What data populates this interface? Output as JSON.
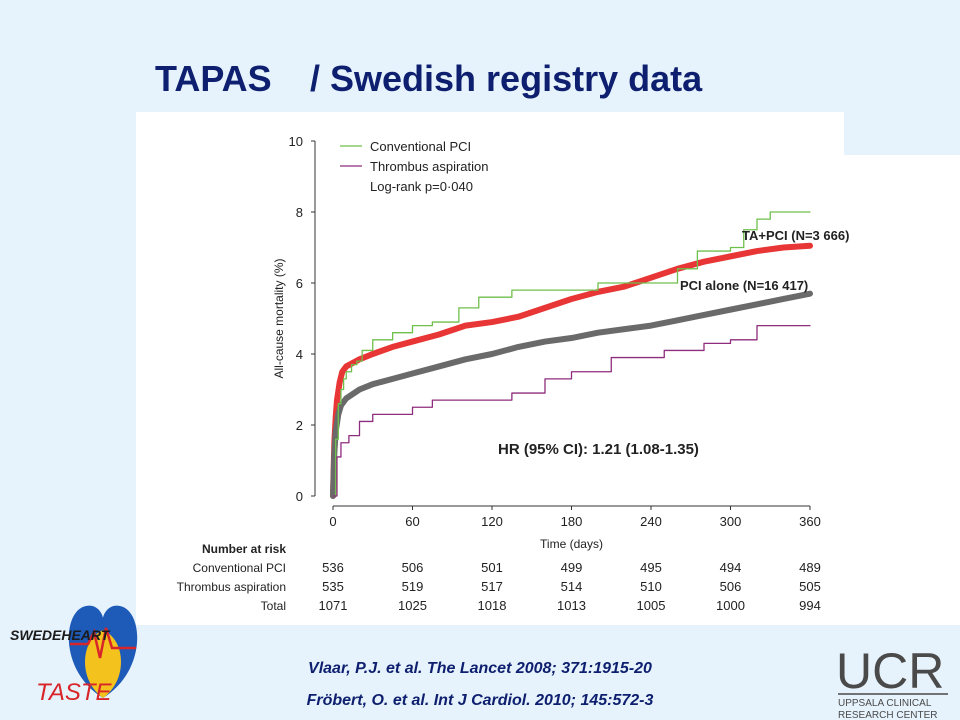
{
  "title_main": "TAPAS",
  "title_sub": "/ Swedish registry data",
  "citations": [
    "Vlaar, P.J. et al. The Lancet  2008; 371:1915-20",
    "Fröbert, O. et al. Int J Cardiol. 2010; 145:572-3"
  ],
  "logos": {
    "swedeheart": "SWEDEHEART",
    "taste": "TASTE",
    "ucr": "UCR",
    "ucr_sub1": "UPPSALA CLINICAL",
    "ucr_sub2": "RESEARCH CENTER"
  },
  "colors": {
    "title": "#0d1f6e",
    "conventional_pci": "#6fbf4b",
    "thrombus_aspiration": "#8e2c7d",
    "ta_pci_registry": "#e83535",
    "pci_alone_registry": "#6a6a6a"
  },
  "chart_data": {
    "type": "line",
    "xlabel": "Time (days)",
    "ylabel": "All-cause mortality (%)",
    "xlim": [
      0,
      360
    ],
    "ylim": [
      0,
      10
    ],
    "x_ticks": [
      0,
      60,
      120,
      180,
      240,
      300,
      360
    ],
    "y_ticks": [
      0,
      2,
      4,
      6,
      8,
      10
    ],
    "legend": {
      "placement": "top-left",
      "entries": [
        "Conventional PCI",
        "Thrombus aspiration",
        "Log-rank p=0·040"
      ]
    },
    "series": [
      {
        "name": "Conventional PCI",
        "step": true,
        "points": [
          [
            0,
            0
          ],
          [
            2,
            1.6
          ],
          [
            4,
            2.6
          ],
          [
            6,
            3.0
          ],
          [
            8,
            3.3
          ],
          [
            10,
            3.5
          ],
          [
            14,
            3.7
          ],
          [
            18,
            3.8
          ],
          [
            22,
            4.1
          ],
          [
            30,
            4.4
          ],
          [
            45,
            4.6
          ],
          [
            60,
            4.8
          ],
          [
            75,
            4.9
          ],
          [
            95,
            5.3
          ],
          [
            110,
            5.6
          ],
          [
            125,
            5.6
          ],
          [
            135,
            5.8
          ],
          [
            160,
            5.8
          ],
          [
            185,
            5.8
          ],
          [
            200,
            6.0
          ],
          [
            240,
            6.0
          ],
          [
            260,
            6.4
          ],
          [
            275,
            6.9
          ],
          [
            300,
            7.0
          ],
          [
            310,
            7.5
          ],
          [
            320,
            7.8
          ],
          [
            330,
            8.0
          ],
          [
            360,
            8.0
          ]
        ]
      },
      {
        "name": "Thrombus aspiration",
        "step": true,
        "points": [
          [
            0,
            0
          ],
          [
            3,
            1.1
          ],
          [
            6,
            1.5
          ],
          [
            12,
            1.7
          ],
          [
            20,
            2.1
          ],
          [
            30,
            2.3
          ],
          [
            60,
            2.5
          ],
          [
            75,
            2.7
          ],
          [
            120,
            2.7
          ],
          [
            135,
            2.9
          ],
          [
            160,
            3.3
          ],
          [
            180,
            3.5
          ],
          [
            200,
            3.5
          ],
          [
            210,
            3.9
          ],
          [
            240,
            3.9
          ],
          [
            250,
            4.1
          ],
          [
            270,
            4.1
          ],
          [
            280,
            4.3
          ],
          [
            300,
            4.4
          ],
          [
            320,
            4.8
          ],
          [
            360,
            4.8
          ]
        ]
      },
      {
        "name": "TA+PCI (N=3 666)",
        "step": false,
        "points": [
          [
            0,
            0
          ],
          [
            1,
            1.5
          ],
          [
            2,
            2.2
          ],
          [
            3,
            2.7
          ],
          [
            5,
            3.2
          ],
          [
            7,
            3.5
          ],
          [
            10,
            3.65
          ],
          [
            20,
            3.85
          ],
          [
            30,
            4.0
          ],
          [
            45,
            4.2
          ],
          [
            60,
            4.35
          ],
          [
            80,
            4.55
          ],
          [
            100,
            4.8
          ],
          [
            120,
            4.9
          ],
          [
            140,
            5.05
          ],
          [
            160,
            5.3
          ],
          [
            180,
            5.55
          ],
          [
            200,
            5.75
          ],
          [
            220,
            5.9
          ],
          [
            240,
            6.15
          ],
          [
            260,
            6.4
          ],
          [
            280,
            6.6
          ],
          [
            300,
            6.75
          ],
          [
            320,
            6.9
          ],
          [
            340,
            7.0
          ],
          [
            360,
            7.05
          ]
        ]
      },
      {
        "name": "PCI alone (N=16 417)",
        "step": false,
        "points": [
          [
            0,
            0
          ],
          [
            1,
            1.2
          ],
          [
            2,
            1.8
          ],
          [
            4,
            2.3
          ],
          [
            6,
            2.55
          ],
          [
            10,
            2.75
          ],
          [
            20,
            3.0
          ],
          [
            30,
            3.15
          ],
          [
            45,
            3.3
          ],
          [
            60,
            3.45
          ],
          [
            80,
            3.65
          ],
          [
            100,
            3.85
          ],
          [
            120,
            4.0
          ],
          [
            140,
            4.2
          ],
          [
            160,
            4.35
          ],
          [
            180,
            4.45
          ],
          [
            200,
            4.6
          ],
          [
            220,
            4.7
          ],
          [
            240,
            4.8
          ],
          [
            260,
            4.95
          ],
          [
            280,
            5.1
          ],
          [
            300,
            5.25
          ],
          [
            320,
            5.4
          ],
          [
            340,
            5.55
          ],
          [
            360,
            5.7
          ]
        ]
      }
    ],
    "annotations": [
      "TA+PCI (N=3 666)",
      "PCI alone (N=16 417)",
      "HR (95% CI): 1.21 (1.08-1.35)"
    ],
    "risk_table": {
      "title": "Number at risk",
      "rows": [
        {
          "label": "Conventional PCI",
          "values": [
            536,
            506,
            501,
            499,
            495,
            494,
            489
          ]
        },
        {
          "label": "Thrombus aspiration",
          "values": [
            535,
            519,
            517,
            514,
            510,
            506,
            505
          ]
        },
        {
          "label": "Total",
          "values": [
            1071,
            1025,
            1018,
            1013,
            1005,
            1000,
            994
          ]
        }
      ]
    }
  }
}
